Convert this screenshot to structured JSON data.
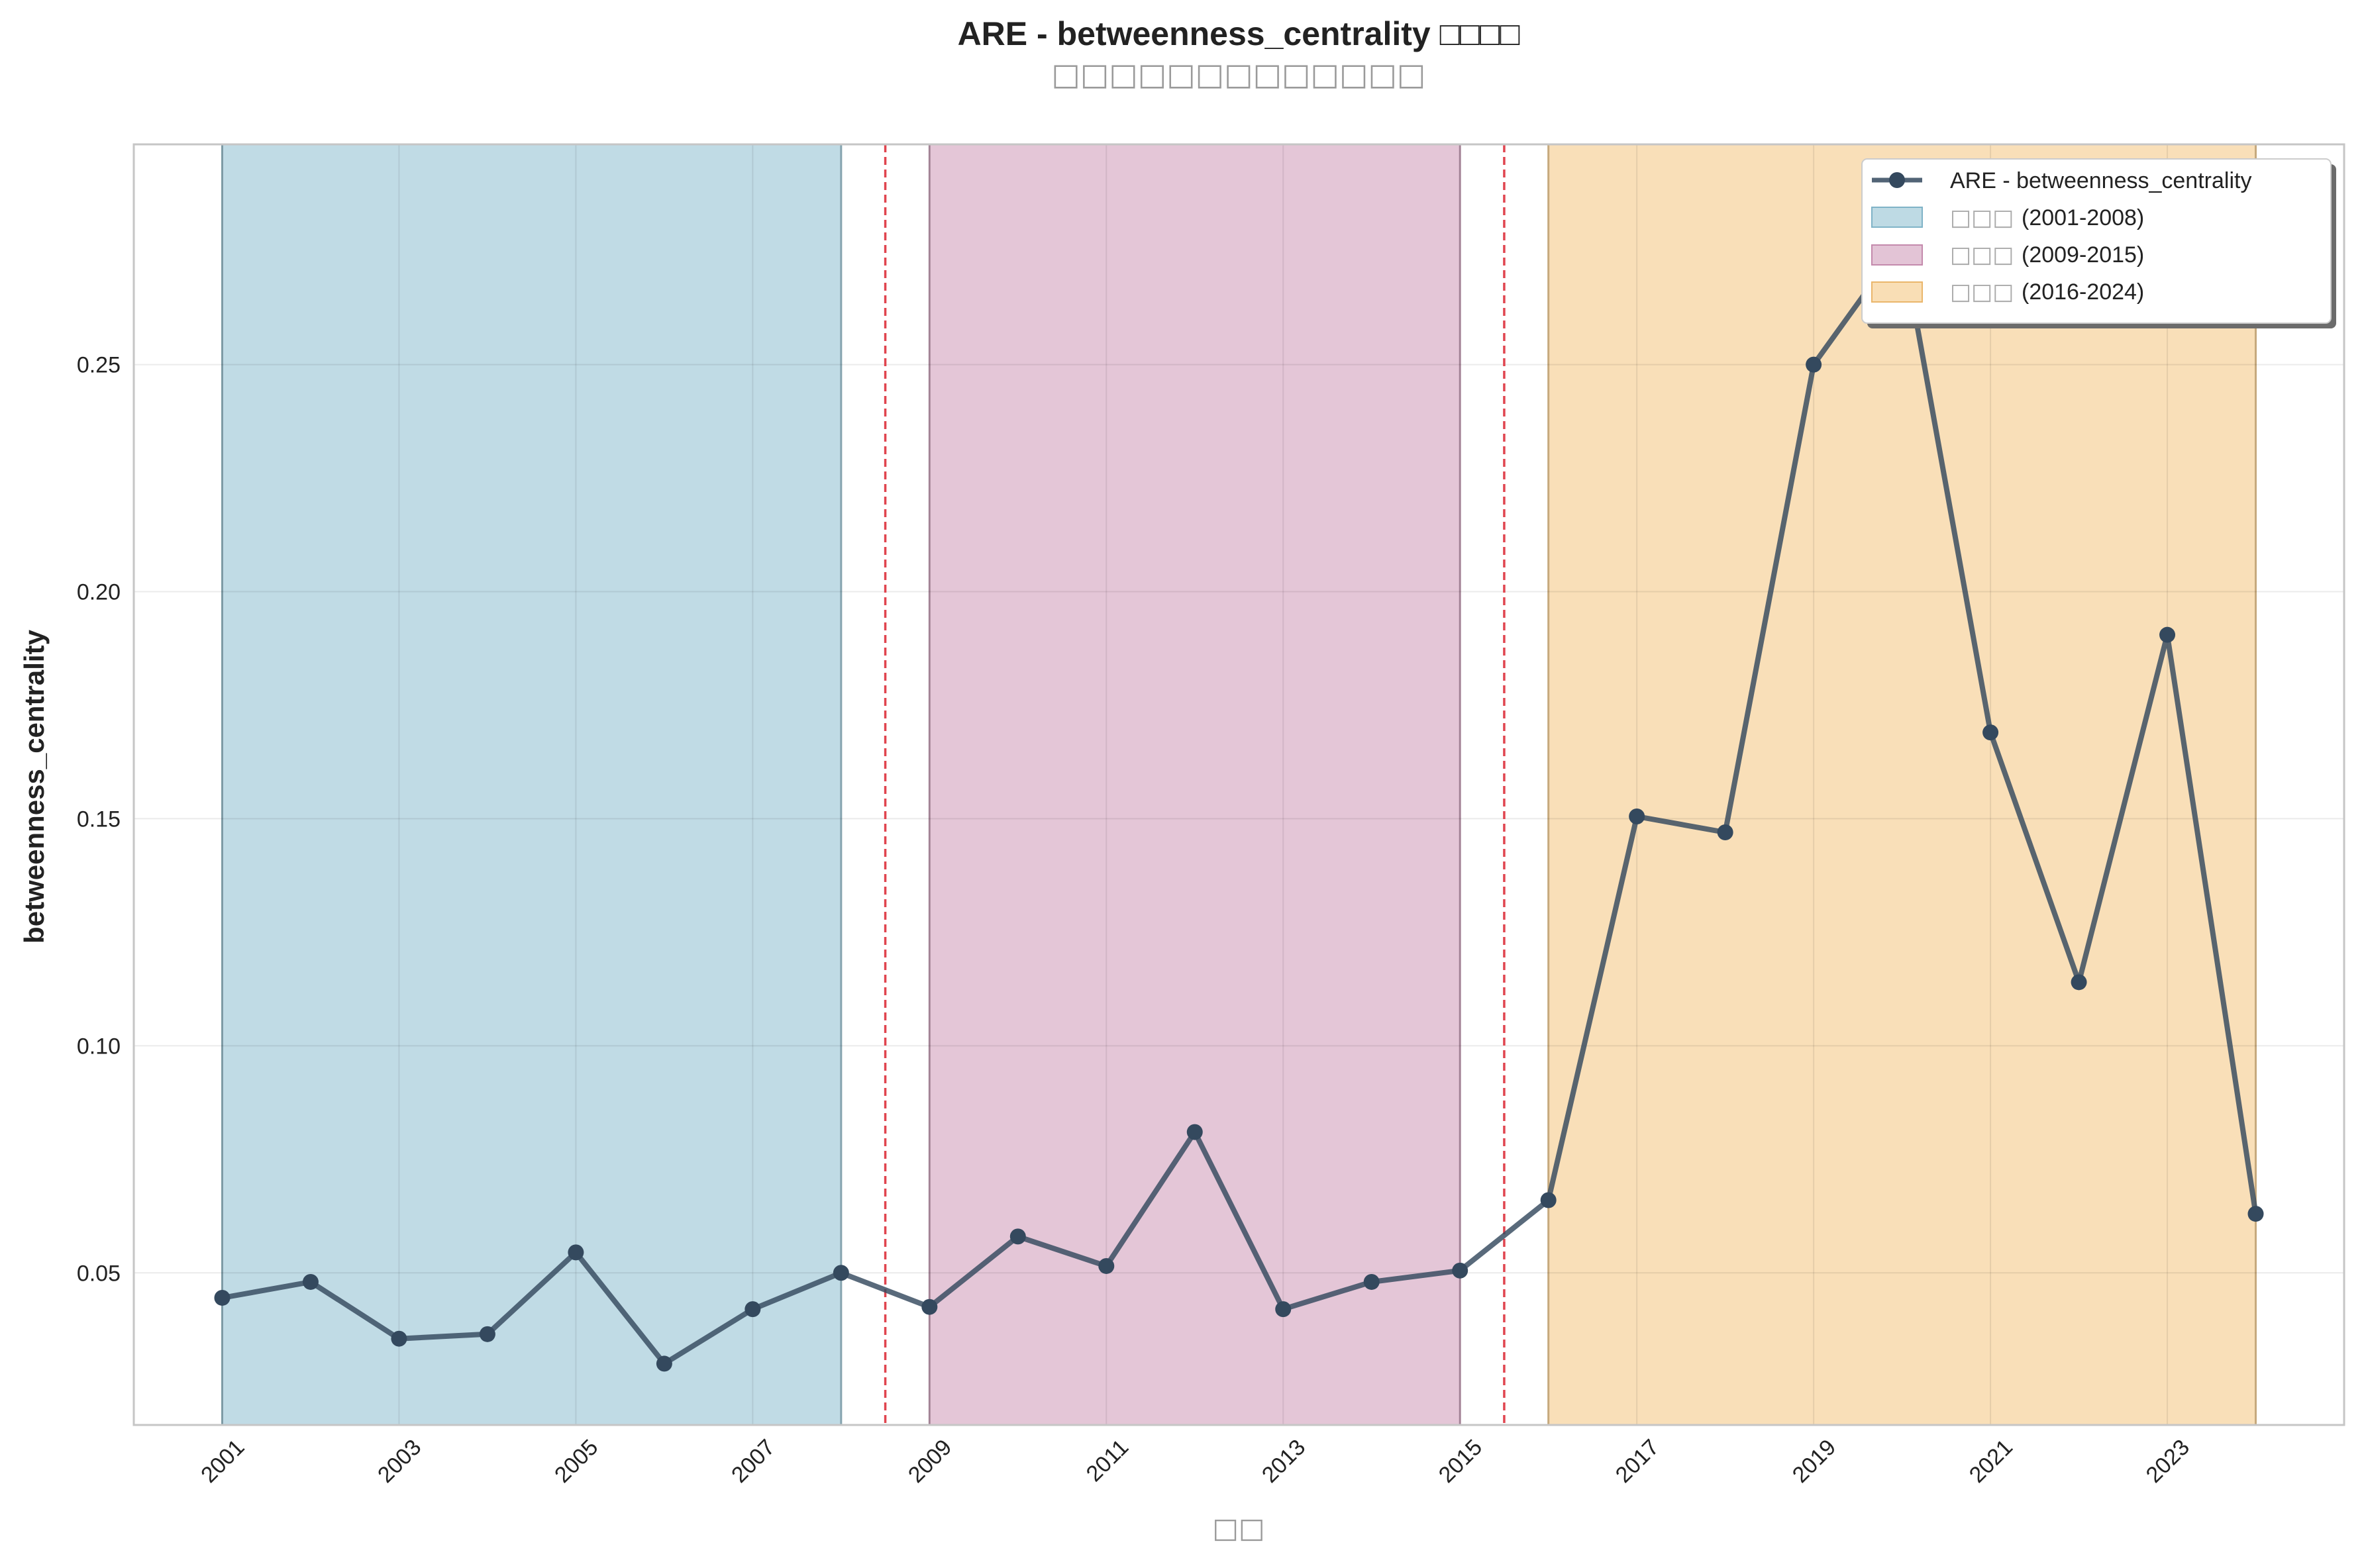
{
  "chart_data": {
    "type": "line",
    "title": "ARE - betweenness_centrality □□□□",
    "subtitle": "□□□□□□□□□□□□□",
    "xlabel": "□□",
    "ylabel": "betweenness_centrality",
    "x": [
      2001,
      2002,
      2003,
      2004,
      2005,
      2006,
      2007,
      2008,
      2009,
      2010,
      2011,
      2012,
      2013,
      2014,
      2015,
      2016,
      2017,
      2018,
      2019,
      2020,
      2021,
      2022,
      2023,
      2024
    ],
    "series": [
      {
        "name": "ARE - betweenness_centrality",
        "color": "#34495e",
        "values": [
          0.0445,
          0.048,
          0.0355,
          0.0365,
          0.0545,
          0.03,
          0.042,
          0.05,
          0.0425,
          0.058,
          0.0515,
          0.081,
          0.042,
          0.048,
          0.0505,
          0.066,
          0.1505,
          0.147,
          0.25,
          0.277,
          0.169,
          0.114,
          0.1905,
          0.063
        ]
      }
    ],
    "periods": [
      {
        "label_prefix": "□□□",
        "label_range": "(2001-2008)",
        "start": 2001,
        "end": 2008,
        "color": "#a8cddb"
      },
      {
        "label_prefix": "□□□",
        "label_range": "(2009-2015)",
        "start": 2009,
        "end": 2015,
        "color": "#d9b0c8"
      },
      {
        "label_prefix": "□□□",
        "label_range": "(2016-2024)",
        "start": 2016,
        "end": 2024,
        "color": "#f7d39c"
      }
    ],
    "dividers": [
      2008.5,
      2015.5
    ],
    "divider_color": "#e0454f",
    "xticks": [
      2001,
      2003,
      2005,
      2007,
      2009,
      2011,
      2013,
      2015,
      2017,
      2019,
      2021,
      2023
    ],
    "yticks": [
      0.05,
      0.1,
      0.15,
      0.2,
      0.25
    ],
    "ytick_labels": [
      "0.05",
      "0.10",
      "0.15",
      "0.20",
      "0.25"
    ],
    "xlim": [
      2000,
      2025
    ],
    "ylim": [
      0.0165,
      0.2985
    ],
    "grid": true,
    "legend_position": "top-right"
  }
}
